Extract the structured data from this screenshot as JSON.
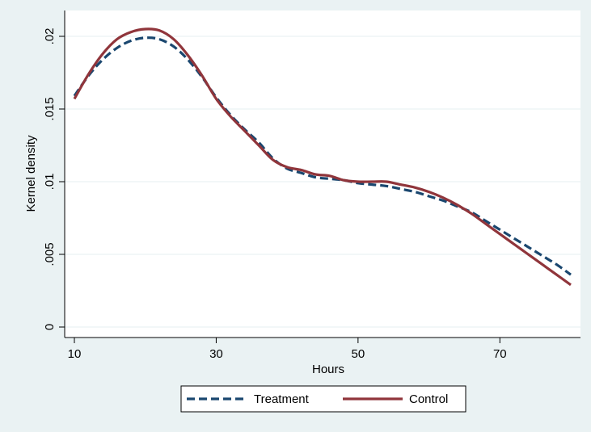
{
  "chart_data": {
    "type": "line",
    "title": "",
    "xlabel": "Hours",
    "ylabel": "Kernel density",
    "xlim": [
      10,
      80
    ],
    "ylim": [
      0,
      0.0205
    ],
    "x_ticks": [
      10,
      30,
      50,
      70
    ],
    "x_tick_labels": [
      "10",
      "30",
      "50",
      "70"
    ],
    "y_ticks": [
      0,
      0.005,
      0.01,
      0.015,
      0.02
    ],
    "y_tick_labels": [
      "0",
      ".005",
      ".01",
      ".015",
      ".02"
    ],
    "grid": true,
    "legend_position": "bottom",
    "series": [
      {
        "name": "Treatment",
        "color": "#1a476f",
        "style": "dashed",
        "x": [
          10,
          12,
          14,
          16,
          18,
          20,
          22,
          24,
          26,
          28,
          30,
          32,
          34,
          36,
          38,
          40,
          42,
          44,
          46,
          48,
          50,
          52,
          54,
          56,
          58,
          60,
          62,
          64,
          66,
          68,
          70,
          72,
          74,
          76,
          78,
          80
        ],
        "y": [
          0.0159,
          0.0173,
          0.0184,
          0.0192,
          0.0197,
          0.0199,
          0.0198,
          0.0193,
          0.0184,
          0.0172,
          0.0158,
          0.0146,
          0.0136,
          0.0127,
          0.0116,
          0.0109,
          0.0106,
          0.0103,
          0.0102,
          0.0101,
          0.0099,
          0.0098,
          0.0097,
          0.0095,
          0.0093,
          0.009,
          0.0087,
          0.0083,
          0.0079,
          0.0073,
          0.0067,
          0.0061,
          0.0055,
          0.0049,
          0.0043,
          0.0036
        ]
      },
      {
        "name": "Control",
        "color": "#90353b",
        "style": "solid",
        "x": [
          10,
          12,
          14,
          16,
          18,
          20,
          22,
          24,
          26,
          28,
          30,
          32,
          34,
          36,
          38,
          40,
          42,
          44,
          46,
          48,
          50,
          52,
          54,
          56,
          58,
          60,
          62,
          64,
          66,
          68,
          70,
          72,
          74,
          76,
          78,
          80
        ],
        "y": [
          0.0157,
          0.0174,
          0.0188,
          0.0198,
          0.0203,
          0.0205,
          0.0204,
          0.0198,
          0.0187,
          0.0173,
          0.0157,
          0.0145,
          0.0135,
          0.0125,
          0.0115,
          0.011,
          0.0108,
          0.0105,
          0.0104,
          0.0101,
          0.01,
          0.01,
          0.01,
          0.0098,
          0.0096,
          0.0093,
          0.0089,
          0.0084,
          0.0078,
          0.0071,
          0.0064,
          0.0057,
          0.005,
          0.0043,
          0.0036,
          0.0029
        ]
      }
    ]
  }
}
